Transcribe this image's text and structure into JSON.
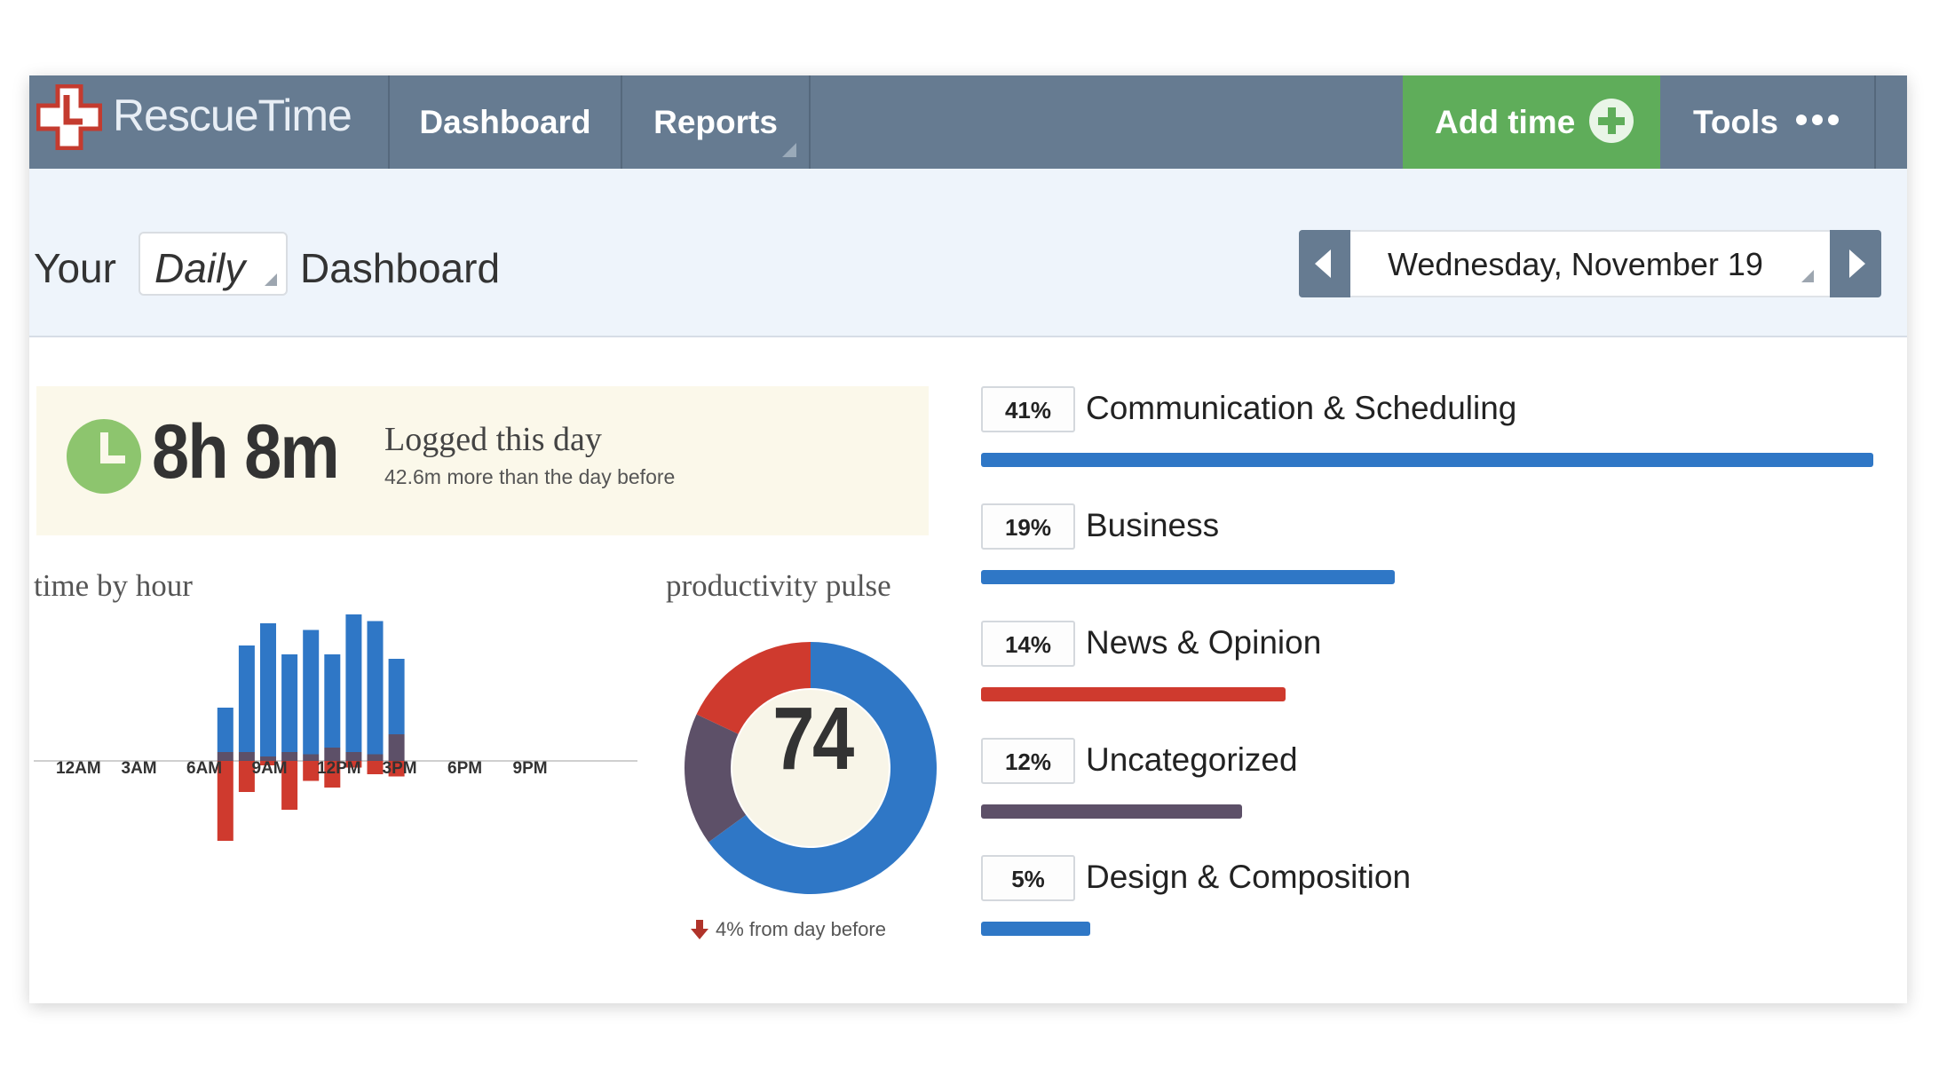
{
  "nav": {
    "logo_text": "RescueTime",
    "items": [
      {
        "label": "Dashboard"
      },
      {
        "label": "Reports"
      }
    ],
    "add_time_label": "Add time",
    "tools_label": "Tools"
  },
  "header": {
    "prefix": "Your",
    "period": "Daily",
    "suffix": "Dashboard",
    "date": "Wednesday, November 19"
  },
  "logged": {
    "value": "8h 8m",
    "caption": "Logged this day",
    "comparison": "42.6m more than the day before"
  },
  "sections": {
    "time_by_hour": "time by hour",
    "productivity_pulse": "productivity pulse"
  },
  "colors": {
    "very_productive": "#2f77c6",
    "neutral": "#5d5068",
    "distracting": "#cf3a2e",
    "accent_green": "#5fad5a",
    "nav": "#667b91"
  },
  "chart_data": [
    {
      "type": "bar",
      "title": "time by hour",
      "x_ticks": [
        "12AM",
        "3AM",
        "6AM",
        "9AM",
        "12PM",
        "3PM",
        "6PM",
        "9PM"
      ],
      "hours": [
        8,
        9,
        10,
        11,
        12,
        13,
        14,
        15,
        16,
        17,
        18
      ],
      "series": [
        {
          "name": "productive",
          "values": [
            20,
            48,
            60,
            44,
            56,
            42,
            62,
            60,
            34,
            0,
            0
          ]
        },
        {
          "name": "neutral",
          "values": [
            4,
            4,
            2,
            4,
            3,
            6,
            4,
            3,
            12,
            0,
            0
          ]
        },
        {
          "name": "distracting",
          "values": [
            -36,
            -14,
            -2,
            -22,
            -9,
            -12,
            -3,
            -6,
            -7,
            0,
            0
          ]
        }
      ],
      "ylim": [
        -40,
        72
      ]
    },
    {
      "type": "pie",
      "title": "productivity pulse",
      "value": 74,
      "slices": [
        {
          "name": "productive",
          "value": 65
        },
        {
          "name": "neutral",
          "value": 17
        },
        {
          "name": "distracting",
          "value": 18
        }
      ],
      "change": "4% from day before"
    },
    {
      "type": "bar",
      "categories": [
        "Communication & Scheduling",
        "Business",
        "News & Opinion",
        "Uncategorized",
        "Design & Composition"
      ],
      "values": [
        41,
        19,
        14,
        12,
        5
      ],
      "labels": [
        "41%",
        "19%",
        "14%",
        "12%",
        "5%"
      ],
      "bar_colors": [
        "#2f77c6",
        "#2f77c6",
        "#cf3a2e",
        "#5d5068",
        "#2f77c6"
      ]
    }
  ]
}
